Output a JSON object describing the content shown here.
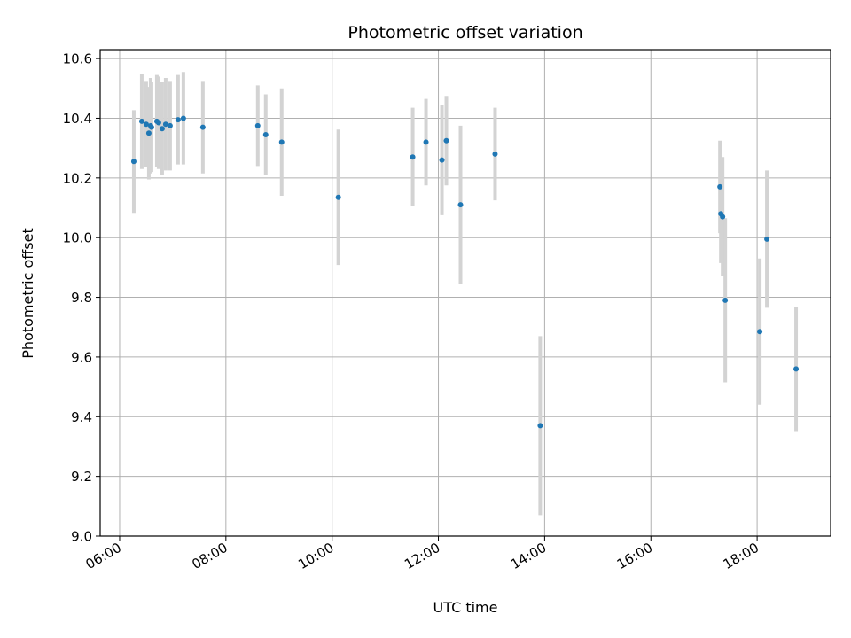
{
  "chart_data": {
    "type": "scatter",
    "title": "Photometric offset variation",
    "xlabel": "UTC time",
    "ylabel": "Photometric offset",
    "xlim": [
      "05:38",
      "19:23"
    ],
    "ylim": [
      9.0,
      10.63
    ],
    "grid": true,
    "x_ticks": [
      "06:00",
      "08:00",
      "10:00",
      "12:00",
      "14:00",
      "16:00",
      "18:00"
    ],
    "y_ticks": [
      9.0,
      9.2,
      9.4,
      9.6,
      9.8,
      10.0,
      10.2,
      10.4,
      10.6
    ],
    "y_tick_labels": [
      "9.0",
      "9.2",
      "9.4",
      "9.6",
      "9.8",
      "10.0",
      "10.2",
      "10.4",
      "10.6"
    ],
    "colors": {
      "point": "#1f77b4",
      "errorbar": "#d3d3d3",
      "grid": "#b0b0b0"
    },
    "points": [
      {
        "x": "06:16",
        "y": 10.255,
        "err": 0.172
      },
      {
        "x": "06:25",
        "y": 10.39,
        "err": 0.16
      },
      {
        "x": "06:30",
        "y": 10.38,
        "err": 0.145
      },
      {
        "x": "06:33",
        "y": 10.35,
        "err": 0.155
      },
      {
        "x": "06:35",
        "y": 10.375,
        "err": 0.16
      },
      {
        "x": "06:36",
        "y": 10.37,
        "err": 0.15
      },
      {
        "x": "06:42",
        "y": 10.39,
        "err": 0.155
      },
      {
        "x": "06:44",
        "y": 10.385,
        "err": 0.155
      },
      {
        "x": "06:48",
        "y": 10.365,
        "err": 0.155
      },
      {
        "x": "06:52",
        "y": 10.38,
        "err": 0.155
      },
      {
        "x": "06:57",
        "y": 10.375,
        "err": 0.15
      },
      {
        "x": "07:06",
        "y": 10.395,
        "err": 0.15
      },
      {
        "x": "07:12",
        "y": 10.4,
        "err": 0.155
      },
      {
        "x": "07:34",
        "y": 10.37,
        "err": 0.155
      },
      {
        "x": "08:36",
        "y": 10.375,
        "err": 0.135
      },
      {
        "x": "08:45",
        "y": 10.345,
        "err": 0.135
      },
      {
        "x": "09:03",
        "y": 10.32,
        "err": 0.18
      },
      {
        "x": "10:07",
        "y": 10.135,
        "err": 0.227
      },
      {
        "x": "11:31",
        "y": 10.27,
        "err": 0.165
      },
      {
        "x": "11:46",
        "y": 10.32,
        "err": 0.145
      },
      {
        "x": "12:04",
        "y": 10.26,
        "err": 0.185
      },
      {
        "x": "12:09",
        "y": 10.325,
        "err": 0.15
      },
      {
        "x": "12:25",
        "y": 10.11,
        "err": 0.265
      },
      {
        "x": "13:04",
        "y": 10.28,
        "err": 0.155
      },
      {
        "x": "13:55",
        "y": 9.37,
        "err": 0.3
      },
      {
        "x": "17:18",
        "y": 10.17,
        "err": 0.155
      },
      {
        "x": "17:19",
        "y": 10.08,
        "err": 0.165
      },
      {
        "x": "17:21",
        "y": 10.07,
        "err": 0.2
      },
      {
        "x": "17:24",
        "y": 9.79,
        "err": 0.275
      },
      {
        "x": "18:03",
        "y": 9.685,
        "err": 0.245
      },
      {
        "x": "18:11",
        "y": 9.995,
        "err": 0.23
      },
      {
        "x": "18:44",
        "y": 9.56,
        "err": 0.208
      }
    ]
  }
}
